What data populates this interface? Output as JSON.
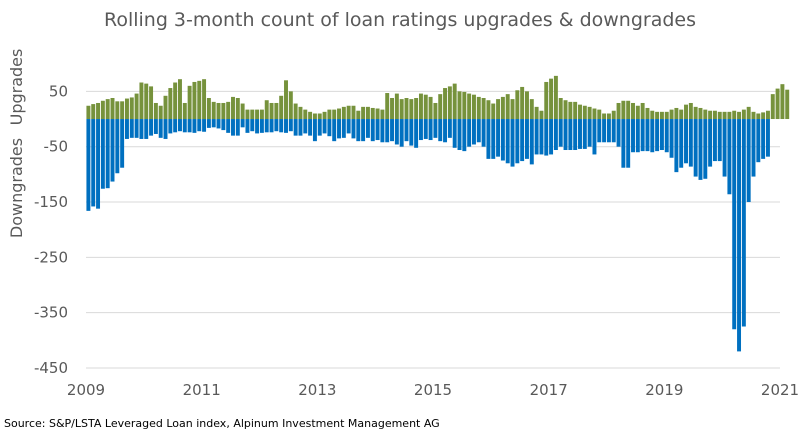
{
  "chart_data": {
    "type": "bar",
    "title": "Rolling 3-month count of loan ratings upgrades & downgrades",
    "ylabel_upper": "Upgrades",
    "ylabel_lower": "Downgrades",
    "source": "Source: S&P/LSTA Leveraged Loan index, Alpinum Investment Management AG",
    "ylim": [
      -450,
      85
    ],
    "yticks": [
      50,
      -50,
      -150,
      -250,
      -350,
      -450
    ],
    "xlim": [
      2009,
      2021
    ],
    "xticks": [
      2009,
      2011,
      2013,
      2015,
      2017,
      2019,
      2021
    ],
    "grid": true,
    "x_frequency": "monthly",
    "series": [
      {
        "name": "Upgrades",
        "color": "#76923c",
        "start": "2009-01",
        "values": [
          24,
          27,
          29,
          33,
          36,
          38,
          32,
          32,
          37,
          39,
          46,
          66,
          64,
          59,
          29,
          24,
          42,
          56,
          66,
          72,
          29,
          60,
          67,
          69,
          72,
          38,
          31,
          29,
          29,
          31,
          40,
          38,
          28,
          17,
          17,
          17,
          17,
          34,
          29,
          29,
          42,
          70,
          50,
          28,
          22,
          17,
          13,
          10,
          10,
          13,
          17,
          17,
          19,
          22,
          24,
          24,
          15,
          22,
          22,
          20,
          19,
          17,
          47,
          38,
          46,
          36,
          38,
          36,
          38,
          46,
          44,
          40,
          29,
          45,
          56,
          59,
          64,
          50,
          49,
          46,
          44,
          40,
          38,
          34,
          28,
          36,
          40,
          45,
          36,
          52,
          58,
          50,
          36,
          22,
          15,
          67,
          73,
          78,
          38,
          34,
          31,
          31,
          26,
          24,
          22,
          19,
          17,
          10,
          10,
          15,
          29,
          33,
          33,
          29,
          24,
          29,
          20,
          15,
          13,
          13,
          13,
          17,
          20,
          17,
          26,
          29,
          22,
          20,
          17,
          15,
          15,
          13,
          13,
          13,
          15,
          13,
          17,
          22,
          13,
          10,
          12,
          15,
          45,
          55,
          63,
          53
        ]
      },
      {
        "name": "Downgrades",
        "color": "#0070c0",
        "start": "2009-01",
        "values": [
          -166,
          -158,
          -162,
          -126,
          -125,
          -113,
          -98,
          -88,
          -36,
          -34,
          -34,
          -36,
          -36,
          -30,
          -27,
          -34,
          -36,
          -26,
          -24,
          -22,
          -24,
          -24,
          -25,
          -22,
          -23,
          -16,
          -15,
          -17,
          -20,
          -25,
          -30,
          -30,
          -15,
          -25,
          -22,
          -26,
          -25,
          -24,
          -24,
          -22,
          -24,
          -25,
          -22,
          -30,
          -30,
          -26,
          -30,
          -40,
          -30,
          -26,
          -31,
          -40,
          -35,
          -34,
          -26,
          -35,
          -40,
          -40,
          -34,
          -40,
          -38,
          -42,
          -42,
          -40,
          -46,
          -50,
          -40,
          -48,
          -52,
          -38,
          -36,
          -38,
          -34,
          -40,
          -42,
          -34,
          -52,
          -56,
          -58,
          -50,
          -46,
          -42,
          -50,
          -72,
          -72,
          -68,
          -75,
          -80,
          -86,
          -80,
          -76,
          -72,
          -82,
          -64,
          -64,
          -66,
          -64,
          -56,
          -50,
          -56,
          -56,
          -56,
          -54,
          -54,
          -50,
          -64,
          -42,
          -42,
          -42,
          -42,
          -50,
          -88,
          -88,
          -60,
          -60,
          -58,
          -58,
          -60,
          -58,
          -56,
          -60,
          -70,
          -96,
          -88,
          -80,
          -86,
          -104,
          -110,
          -108,
          -86,
          -76,
          -76,
          -104,
          -136,
          -380,
          -420,
          -375,
          -150,
          -104,
          -78,
          -72,
          -68
        ]
      }
    ]
  }
}
